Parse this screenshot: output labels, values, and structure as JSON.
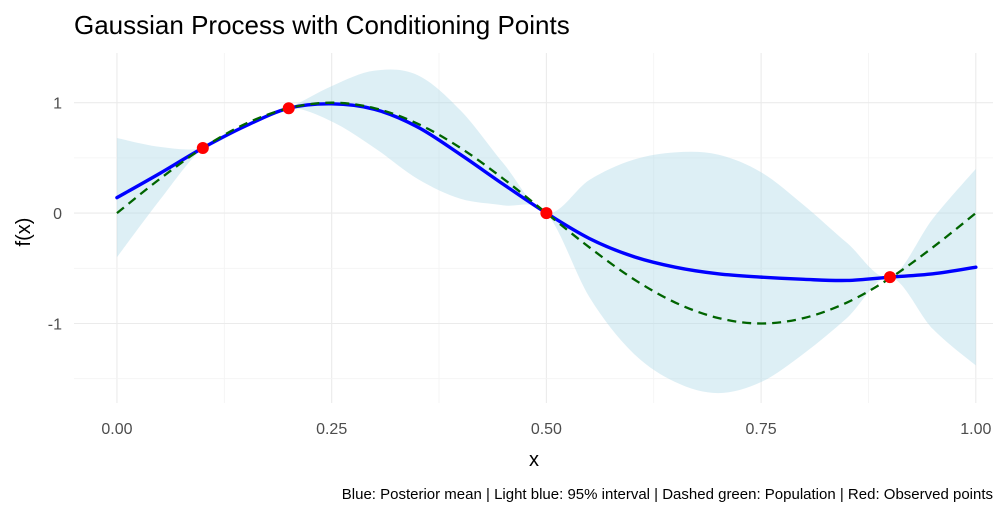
{
  "chart_data": {
    "type": "line",
    "title": "Gaussian Process with Conditioning Points",
    "xlabel": "x",
    "ylabel": "f(x)",
    "caption": "Blue: Posterior mean | Light blue: 95% interval | Dashed green: Population | Red: Observed points",
    "xlim": [
      -0.05,
      1.02
    ],
    "ylim": [
      -1.72,
      1.45
    ],
    "x_ticks": [
      0.0,
      0.25,
      0.5,
      0.75,
      1.0
    ],
    "x_tick_labels": [
      "0.00",
      "0.25",
      "0.50",
      "0.75",
      "1.00"
    ],
    "y_ticks": [
      -1,
      0,
      1
    ],
    "y_tick_labels": [
      "-1",
      "0",
      "1"
    ],
    "grid": true,
    "legend": "none",
    "x": [
      0.0,
      0.05,
      0.1,
      0.15,
      0.2,
      0.25,
      0.3,
      0.35,
      0.4,
      0.45,
      0.5,
      0.55,
      0.6,
      0.65,
      0.7,
      0.75,
      0.8,
      0.85,
      0.9,
      0.95,
      1.0
    ],
    "series": [
      {
        "name": "Posterior mean",
        "role": "mean",
        "color": "#0000ff",
        "values": [
          0.14,
          0.36,
          0.59,
          0.79,
          0.95,
          0.99,
          0.94,
          0.78,
          0.53,
          0.26,
          0.0,
          -0.23,
          -0.39,
          -0.49,
          -0.55,
          -0.58,
          -0.6,
          -0.61,
          -0.58,
          -0.55,
          -0.49
        ]
      },
      {
        "name": "Population",
        "role": "population",
        "color": "#006400",
        "values": [
          0.0,
          0.31,
          0.59,
          0.81,
          0.95,
          1.0,
          0.95,
          0.81,
          0.59,
          0.31,
          0.0,
          -0.31,
          -0.59,
          -0.81,
          -0.95,
          -1.0,
          -0.95,
          -0.81,
          -0.59,
          -0.31,
          0.0
        ]
      },
      {
        "name": "95% interval upper",
        "role": "band_upper",
        "color": "#add8e6",
        "values": [
          0.68,
          0.6,
          0.59,
          0.78,
          0.95,
          1.15,
          1.29,
          1.25,
          0.93,
          0.45,
          0.0,
          0.3,
          0.48,
          0.55,
          0.53,
          0.37,
          0.07,
          -0.27,
          -0.58,
          -0.05,
          0.4
        ]
      },
      {
        "name": "95% interval lower",
        "role": "band_lower",
        "color": "#add8e6",
        "values": [
          -0.4,
          0.12,
          0.59,
          0.8,
          0.95,
          0.83,
          0.59,
          0.31,
          0.13,
          0.07,
          0.0,
          -0.76,
          -1.26,
          -1.53,
          -1.63,
          -1.53,
          -1.27,
          -0.95,
          -0.58,
          -1.05,
          -1.38
        ]
      }
    ],
    "observed_points": {
      "name": "Observed points",
      "color": "#ff0000",
      "x": [
        0.1,
        0.2,
        0.5,
        0.9
      ],
      "y": [
        0.59,
        0.95,
        0.0,
        -0.58
      ]
    }
  }
}
